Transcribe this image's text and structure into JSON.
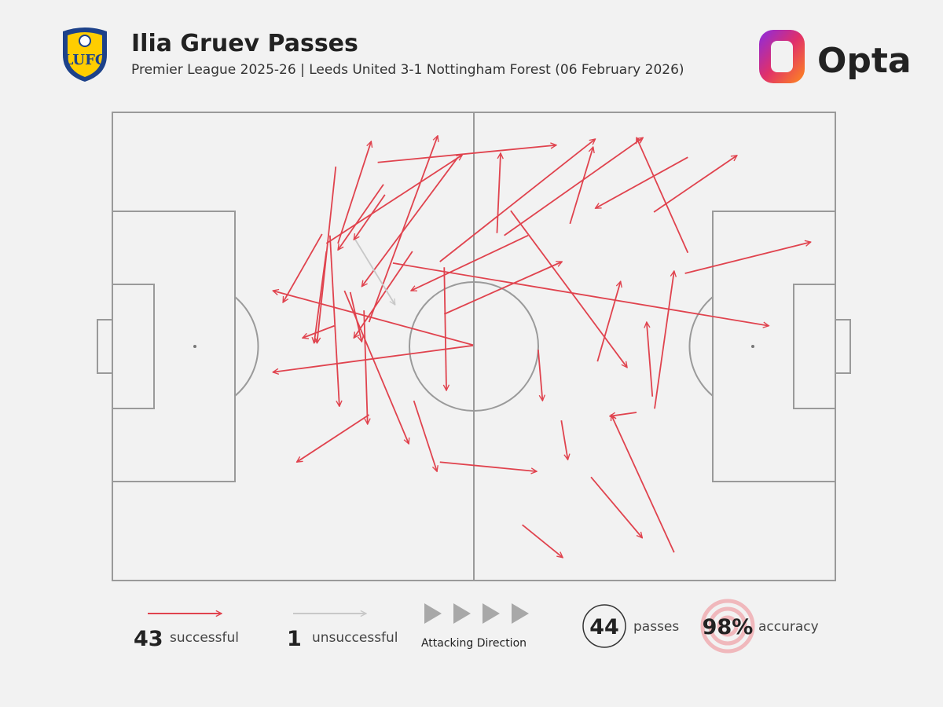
{
  "header": {
    "title": "Ilia Gruev Passes",
    "subtitle": "Premier League 2025-26 | Leeds United 3-1 Nottingham Forest (06 February 2026)",
    "brand": "Opta"
  },
  "chart_data": {
    "type": "pass-map",
    "xlim": [
      0,
      100
    ],
    "ylim": [
      0,
      100
    ],
    "series": [
      {
        "name": "successful",
        "color": "#e0434e",
        "count": 43,
        "x": [
          36.7,
          31.2,
          35.5,
          30.9,
          49.9,
          49.9,
          29.0,
          29.6,
          37.5,
          37.7,
          30.1,
          29.6,
          30.7,
          32.1,
          34.8,
          41.5,
          47.8,
          38.8,
          45.3,
          54.2,
          55.1,
          53.2,
          63.3,
          57.5,
          45.9,
          45.9,
          79.6,
          74.9,
          79.6,
          79.2,
          67.1,
          74.7,
          75.0,
          72.5,
          77.7,
          66.2,
          56.7,
          62.1,
          58.9,
          41.7,
          45.3,
          35.5,
          32.9
        ],
        "y": [
          89.3,
          72.0,
          55.2,
          88.4,
          50.3,
          50.2,
          74.0,
          72.0,
          84.6,
          82.4,
          73.7,
          70.3,
          54.4,
          61.9,
          57.7,
          70.3,
          90.4,
          67.8,
          68.1,
          73.7,
          79.0,
          74.2,
          76.2,
          73.7,
          66.9,
          56.9,
          90.4,
          78.7,
          70.0,
          65.6,
          46.8,
          39.3,
          36.7,
          35.9,
          6.0,
          22.1,
          11.9,
          34.2,
          49.3,
          38.4,
          25.3,
          35.4,
          61.6
        ],
        "end_x": [
          61.4,
          35.8,
          45.0,
          28.3,
          22.2,
          22.2,
          23.6,
          48.4,
          31.2,
          33.4,
          31.4,
          27.9,
          26.3,
          41.0,
          35.3,
          33.4,
          34.5,
          90.8,
          66.8,
          73.4,
          71.2,
          53.7,
          66.5,
          41.3,
          46.2,
          62.2,
          66.8,
          86.4,
          72.5,
          96.6,
          70.3,
          73.9,
          77.7,
          68.8,
          69.0,
          73.3,
          62.3,
          63.0,
          59.5,
          44.9,
          58.7,
          25.5,
          34.5
        ],
        "end_y": [
          93.0,
          93.8,
          95.0,
          50.7,
          61.9,
          44.5,
          59.4,
          90.9,
          70.6,
          72.8,
          37.2,
          50.7,
          51.8,
          29.2,
          33.4,
          51.8,
          62.8,
          54.4,
          94.3,
          94.6,
          45.5,
          91.3,
          92.6,
          61.9,
          40.6,
          68.1,
          79.5,
          90.8,
          94.6,
          72.3,
          63.9,
          55.2,
          66.1,
          35.1,
          35.4,
          9.1,
          4.9,
          25.8,
          38.4,
          23.3,
          23.3,
          25.3,
          51.0
        ]
      },
      {
        "name": "unsuccessful",
        "color": "#c8c8c8",
        "count": 1,
        "x": [
          33.6
        ],
        "y": [
          72.8
        ],
        "end_x": [
          39.1
        ],
        "end_y": [
          58.9
        ]
      }
    ]
  },
  "legend": {
    "direction_label": "Attacking Direction"
  },
  "summary": {
    "passes": 44,
    "passes_label": "passes",
    "accuracy": {
      "value": 98,
      "label": "98%"
    },
    "accuracy_label": "accuracy"
  }
}
